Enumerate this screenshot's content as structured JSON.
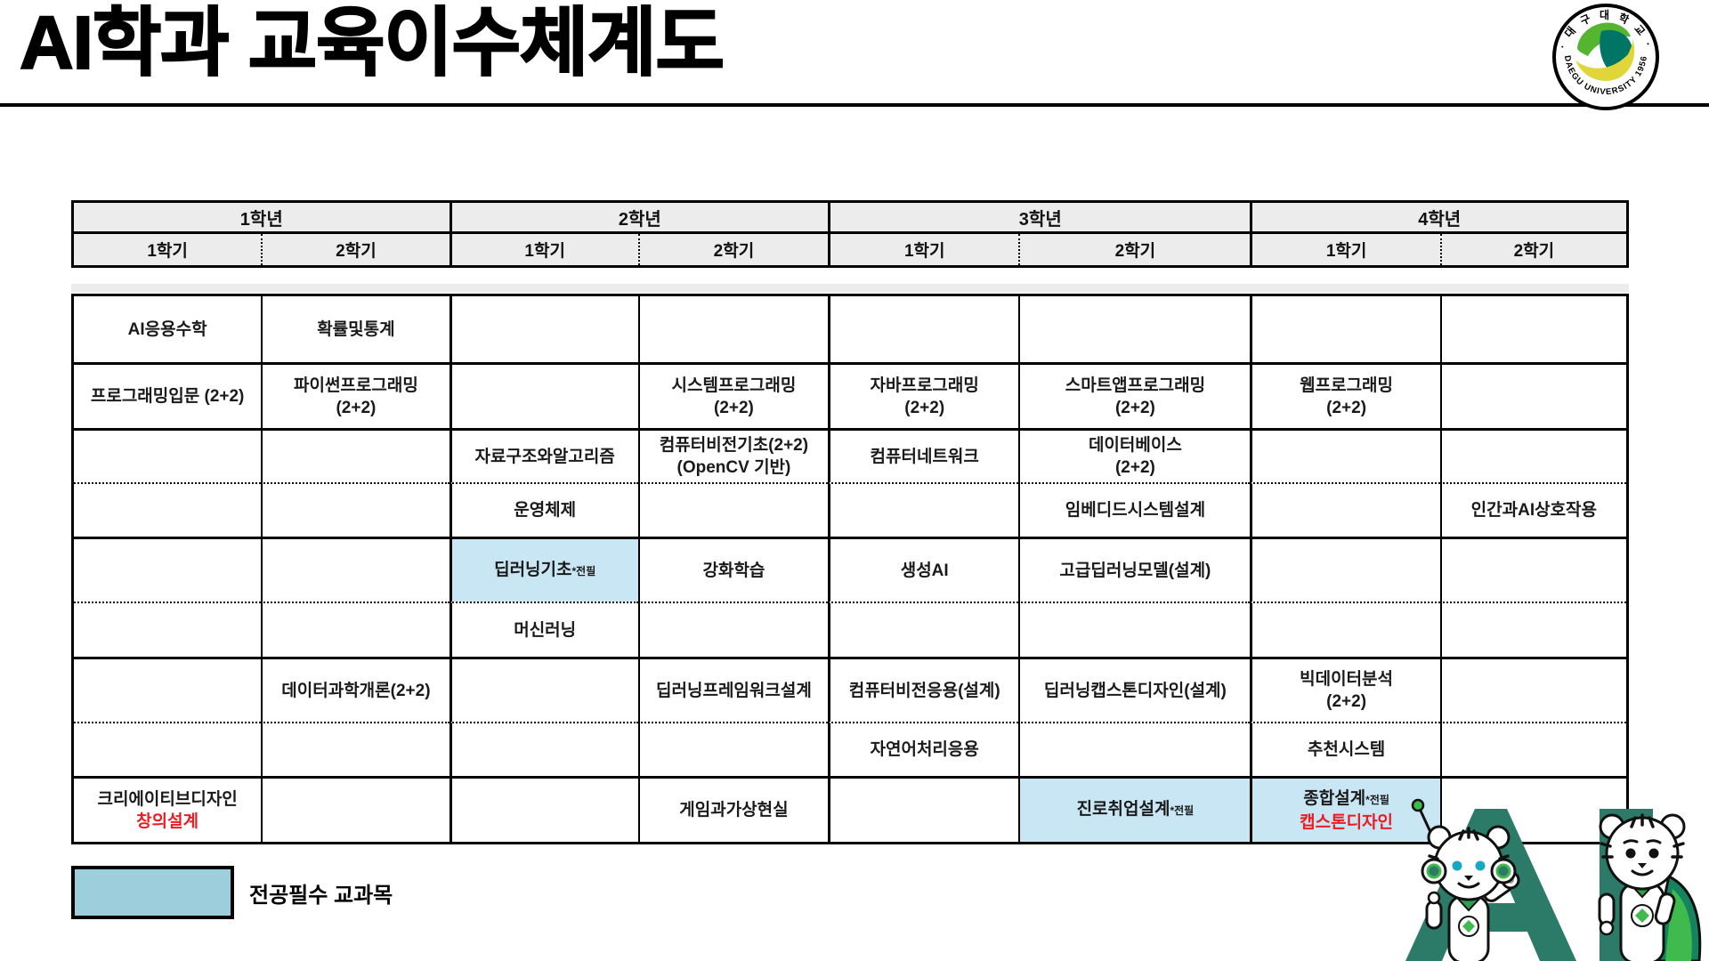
{
  "page": {
    "title": "AI학과 교육이수체계도"
  },
  "logo": {
    "top_text": "· 대 구 대 학 교 ·",
    "bottom_text": "DAEGU UNIVERSITY 1956"
  },
  "table": {
    "years": [
      "1학년",
      "2학년",
      "3학년",
      "4학년"
    ],
    "semesters": [
      "1학기",
      "2학기",
      "1학기",
      "2학기",
      "1학기",
      "2학기",
      "1학기",
      "2학기"
    ],
    "rows": [
      {
        "cells": [
          {
            "lines": [
              "AI응용수학"
            ]
          },
          {
            "lines": [
              "확률및통계"
            ]
          },
          null,
          null,
          null,
          null,
          null,
          null
        ]
      },
      {
        "cells": [
          {
            "lines": [
              "프로그래밍입문 (2+2)"
            ]
          },
          {
            "lines": [
              "파이썬프로그래밍",
              "(2+2)"
            ]
          },
          null,
          {
            "lines": [
              "시스템프로그래밍",
              "(2+2)"
            ]
          },
          {
            "lines": [
              "자바프로그래밍",
              "(2+2)"
            ]
          },
          {
            "lines": [
              "스마트앱프로그래밍",
              "(2+2)"
            ]
          },
          {
            "lines": [
              "웹프로그래밍",
              "(2+2)"
            ]
          },
          null
        ]
      },
      {
        "cells": [
          null,
          null,
          {
            "lines": [
              "자료구조와알고리즘"
            ]
          },
          {
            "lines": [
              "컴퓨터비전기초(2+2)",
              "(OpenCV 기반)"
            ]
          },
          {
            "lines": [
              "컴퓨터네트워크"
            ]
          },
          {
            "lines": [
              "데이터베이스",
              "(2+2)"
            ]
          },
          null,
          null
        ]
      },
      {
        "cells": [
          null,
          null,
          {
            "lines": [
              "운영체제"
            ]
          },
          null,
          null,
          {
            "lines": [
              "임베디드시스템설계"
            ]
          },
          null,
          {
            "lines": [
              "인간과AI상호작용"
            ]
          }
        ]
      },
      {
        "cells": [
          null,
          null,
          {
            "lines": [
              "딥러닝기초"
            ],
            "suffix": "*전필",
            "highlight": true
          },
          {
            "lines": [
              "강화학습"
            ]
          },
          {
            "lines": [
              "생성AI"
            ]
          },
          {
            "lines": [
              "고급딥러닝모델(설계)"
            ]
          },
          null,
          null
        ]
      },
      {
        "cells": [
          null,
          null,
          {
            "lines": [
              "머신러닝"
            ]
          },
          null,
          null,
          null,
          null,
          null
        ]
      },
      {
        "cells": [
          null,
          {
            "lines": [
              "데이터과학개론(2+2)"
            ]
          },
          null,
          {
            "lines": [
              "딥러닝프레임워크설계"
            ]
          },
          {
            "lines": [
              "컴퓨터비전응용(설계)"
            ]
          },
          {
            "lines": [
              "딥러닝캡스톤디자인(설계)"
            ]
          },
          {
            "lines": [
              "빅데이터분석",
              "(2+2)"
            ]
          },
          null
        ]
      },
      {
        "cells": [
          null,
          null,
          null,
          null,
          {
            "lines": [
              "자연어처리응용"
            ]
          },
          null,
          {
            "lines": [
              "추천시스템"
            ]
          },
          null
        ]
      },
      {
        "cells": [
          {
            "lines": [
              "크리에이티브디자인"
            ],
            "red_line": "창의설계"
          },
          null,
          null,
          {
            "lines": [
              "게임과가상현실"
            ]
          },
          null,
          {
            "lines": [
              "진로취업설계"
            ],
            "suffix": "*전필",
            "highlight": true
          },
          {
            "lines": [
              "종합설계"
            ],
            "suffix": "*전필",
            "red_line": "캡스톤디자인",
            "highlight": true
          },
          null
        ]
      }
    ]
  },
  "legend": {
    "label": "전공필수 교과목",
    "swatch_color": "#9CCEDC"
  },
  "colors": {
    "highlight_cell": "#C8E6F3",
    "header_bg": "#ECECEC",
    "accent_red": "#EC1C24",
    "ai_teal": "#2B7B68",
    "logo_green": "#55B430",
    "logo_dark_teal": "#007566",
    "logo_yellow": "#E0D63A"
  },
  "artwork": {
    "letters": "AI"
  }
}
